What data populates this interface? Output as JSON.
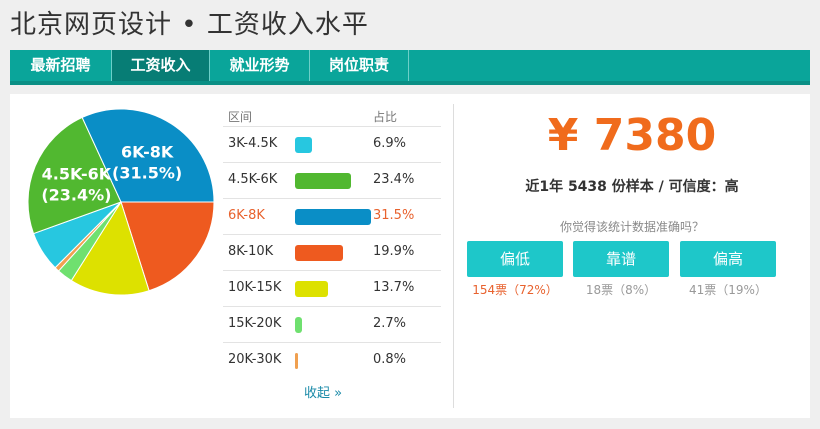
{
  "page": {
    "title": "北京网页设计 • 工资收入水平"
  },
  "tabs": [
    {
      "label": "最新招聘",
      "active": false
    },
    {
      "label": "工资收入",
      "active": true
    },
    {
      "label": "就业形势",
      "active": false
    },
    {
      "label": "岗位职责",
      "active": false
    }
  ],
  "table": {
    "headers": {
      "range": "区间",
      "share": "占比"
    },
    "collapse_label": "收起 »"
  },
  "chart_data": {
    "type": "pie",
    "categories": [
      "3K-4.5K",
      "4.5K-6K",
      "6K-8K",
      "8K-10K",
      "10K-15K",
      "15K-20K",
      "20K-30K"
    ],
    "values": [
      6.9,
      23.4,
      31.5,
      19.9,
      13.7,
      2.7,
      0.8
    ],
    "value_labels": [
      "6.9%",
      "23.4%",
      "31.5%",
      "19.9%",
      "13.7%",
      "2.7%",
      "0.8%"
    ],
    "colors": [
      "#27c7e0",
      "#51b830",
      "#0a8ec6",
      "#ee5a1f",
      "#dde100",
      "#6fe06f",
      "#f0a050"
    ],
    "highlight_index": 2,
    "pie_labels": [
      {
        "index": 1,
        "line1": "4.5K-6K",
        "line2": "(23.4%)"
      },
      {
        "index": 2,
        "line1": "6K-8K",
        "line2": "(31.5%)"
      }
    ]
  },
  "summary": {
    "salary": "¥ 7380",
    "sample_text": "近1年 5438 份样本 / 可信度：高",
    "question": "你觉得该统计数据准确吗？"
  },
  "votes": [
    {
      "label": "偏低",
      "count": "154票（72%）",
      "highlight": true
    },
    {
      "label": "靠谱",
      "count": "18票（8%）",
      "highlight": false
    },
    {
      "label": "偏高",
      "count": "41票（19%）",
      "highlight": false
    }
  ],
  "colors": {
    "accent": "#0aa59a",
    "active_tab": "#077d75",
    "salary": "#f06b1c",
    "vote_button": "#1ec7c9"
  }
}
